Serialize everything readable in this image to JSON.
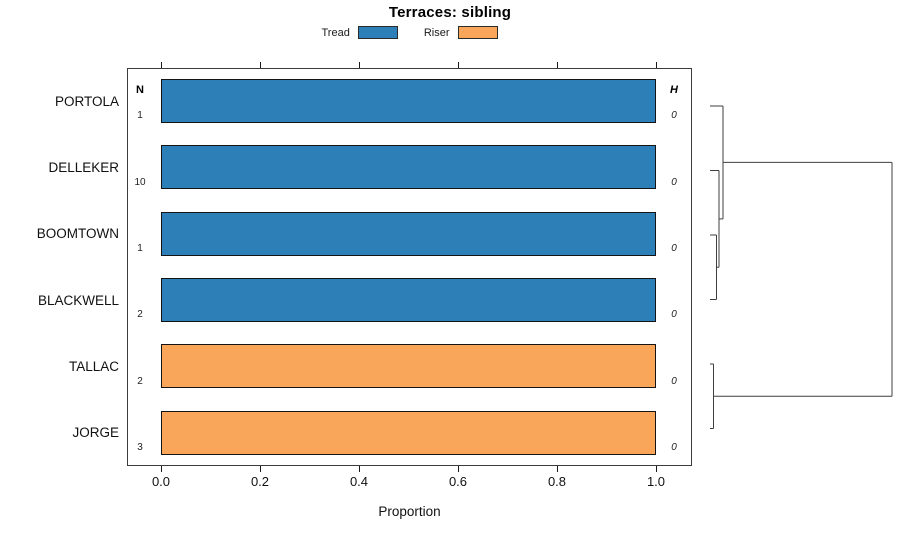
{
  "title": "Terraces: sibling",
  "legend": [
    {
      "label": "Tread",
      "color": "#2D7FB8"
    },
    {
      "label": "Riser",
      "color": "#FAA65A"
    }
  ],
  "columns": {
    "n_header": "N",
    "h_header": "H"
  },
  "xlabel": "Proportion",
  "chart_data": {
    "type": "bar",
    "orientation": "horizontal",
    "title": "Terraces: sibling",
    "xlabel": "Proportion",
    "xlim": [
      0,
      1
    ],
    "x_ticks": [
      0.0,
      0.2,
      0.4,
      0.6,
      0.8,
      1.0
    ],
    "x_tick_labels": [
      "0.0",
      "0.2",
      "0.4",
      "0.6",
      "0.8",
      "1.0"
    ],
    "grid": false,
    "legend_position": "top",
    "categories": [
      "PORTOLA",
      "DELLEKER",
      "BOOMTOWN",
      "BLACKWELL",
      "TALLAC",
      "JORGE"
    ],
    "series_colors": {
      "Tread": "#2D7FB8",
      "Riser": "#FAA65A"
    },
    "rows": [
      {
        "label": "PORTOLA",
        "n": "1",
        "h": "0",
        "value": 1.0,
        "series": "Tread"
      },
      {
        "label": "DELLEKER",
        "n": "10",
        "h": "0",
        "value": 1.0,
        "series": "Tread"
      },
      {
        "label": "BOOMTOWN",
        "n": "1",
        "h": "0",
        "value": 1.0,
        "series": "Tread"
      },
      {
        "label": "BLACKWELL",
        "n": "2",
        "h": "0",
        "value": 1.0,
        "series": "Tread"
      },
      {
        "label": "TALLAC",
        "n": "2",
        "h": "0",
        "value": 1.0,
        "series": "Riser"
      },
      {
        "label": "JORGE",
        "n": "3",
        "h": "0",
        "value": 1.0,
        "series": "Riser"
      }
    ],
    "dendrogram": {
      "description": "Right-margin cluster tree: ((PORTOLA,(DELLEKER,(BOOMTOWN,BLACKWELL))),(TALLAC,JORGE)) joined at the root",
      "segments": [
        [
          18,
          106,
          31,
          106
        ],
        [
          31,
          106,
          31,
          218.9
        ],
        [
          18,
          170.5,
          27,
          170.5
        ],
        [
          27,
          170.5,
          27,
          267.25
        ],
        [
          18,
          235,
          24.5,
          235
        ],
        [
          24.5,
          235,
          24.5,
          299.5
        ],
        [
          18,
          299.5,
          24.5,
          299.5
        ],
        [
          24.5,
          267.25,
          27,
          267.25
        ],
        [
          27,
          218.9,
          31,
          218.9
        ],
        [
          31,
          162.4,
          200,
          162.4
        ],
        [
          18,
          364,
          21.5,
          364
        ],
        [
          21.5,
          364,
          21.5,
          428.5
        ],
        [
          18,
          428.5,
          21.5,
          428.5
        ],
        [
          21.5,
          396.25,
          200,
          396.25
        ],
        [
          200,
          162.4,
          200,
          396.25
        ]
      ]
    }
  }
}
